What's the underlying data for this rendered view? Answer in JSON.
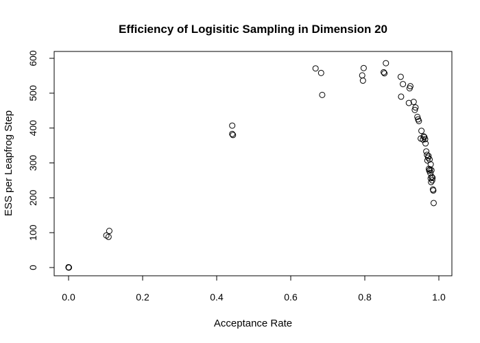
{
  "chart_data": {
    "type": "scatter",
    "title": "Efficiency of Logisitic Sampling in Dimension 20",
    "xlabel": "Acceptance Rate",
    "ylabel": "ESS per Leapfrog Step",
    "xlim": [
      0.0,
      1.0
    ],
    "ylim": [
      0,
      600
    ],
    "x_ticks": [
      0.0,
      0.2,
      0.4,
      0.6,
      0.8,
      1.0
    ],
    "x_tick_labels": [
      "0.0",
      "0.2",
      "0.4",
      "0.6",
      "0.8",
      "1.0"
    ],
    "y_ticks": [
      0,
      100,
      200,
      300,
      400,
      500,
      600
    ],
    "y_tick_labels": [
      "0",
      "100",
      "200",
      "300",
      "400",
      "500",
      "600"
    ],
    "grid": false,
    "legend": "none",
    "marker": "open-circle",
    "color": "#000000",
    "points": [
      {
        "x": 0.0,
        "y": 0
      },
      {
        "x": 0.0,
        "y": 1
      },
      {
        "x": 0.001,
        "y": 0
      },
      {
        "x": 0.102,
        "y": 92
      },
      {
        "x": 0.108,
        "y": 88
      },
      {
        "x": 0.11,
        "y": 105
      },
      {
        "x": 0.442,
        "y": 407
      },
      {
        "x": 0.442,
        "y": 383
      },
      {
        "x": 0.444,
        "y": 380
      },
      {
        "x": 0.667,
        "y": 571
      },
      {
        "x": 0.682,
        "y": 558
      },
      {
        "x": 0.685,
        "y": 495
      },
      {
        "x": 0.793,
        "y": 551
      },
      {
        "x": 0.795,
        "y": 536
      },
      {
        "x": 0.797,
        "y": 572
      },
      {
        "x": 0.851,
        "y": 560
      },
      {
        "x": 0.853,
        "y": 557
      },
      {
        "x": 0.857,
        "y": 586
      },
      {
        "x": 0.897,
        "y": 547
      },
      {
        "x": 0.898,
        "y": 490
      },
      {
        "x": 0.903,
        "y": 526
      },
      {
        "x": 0.919,
        "y": 472
      },
      {
        "x": 0.921,
        "y": 514
      },
      {
        "x": 0.923,
        "y": 520
      },
      {
        "x": 0.932,
        "y": 475
      },
      {
        "x": 0.935,
        "y": 452
      },
      {
        "x": 0.937,
        "y": 459
      },
      {
        "x": 0.942,
        "y": 432
      },
      {
        "x": 0.944,
        "y": 425
      },
      {
        "x": 0.946,
        "y": 420
      },
      {
        "x": 0.951,
        "y": 370
      },
      {
        "x": 0.953,
        "y": 392
      },
      {
        "x": 0.957,
        "y": 367
      },
      {
        "x": 0.959,
        "y": 376
      },
      {
        "x": 0.961,
        "y": 374
      },
      {
        "x": 0.963,
        "y": 368
      },
      {
        "x": 0.964,
        "y": 356
      },
      {
        "x": 0.966,
        "y": 333
      },
      {
        "x": 0.968,
        "y": 323
      },
      {
        "x": 0.969,
        "y": 307
      },
      {
        "x": 0.971,
        "y": 315
      },
      {
        "x": 0.972,
        "y": 320
      },
      {
        "x": 0.973,
        "y": 283
      },
      {
        "x": 0.974,
        "y": 278
      },
      {
        "x": 0.975,
        "y": 310
      },
      {
        "x": 0.976,
        "y": 281
      },
      {
        "x": 0.977,
        "y": 271
      },
      {
        "x": 0.978,
        "y": 296
      },
      {
        "x": 0.978,
        "y": 256
      },
      {
        "x": 0.979,
        "y": 245
      },
      {
        "x": 0.98,
        "y": 279
      },
      {
        "x": 0.981,
        "y": 260
      },
      {
        "x": 0.982,
        "y": 250
      },
      {
        "x": 0.983,
        "y": 257
      },
      {
        "x": 0.984,
        "y": 224
      },
      {
        "x": 0.985,
        "y": 221
      },
      {
        "x": 0.986,
        "y": 185
      }
    ]
  }
}
